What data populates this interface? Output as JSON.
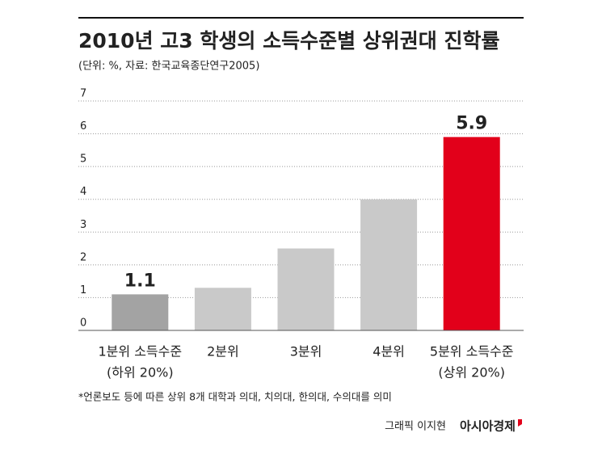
{
  "chart_data": {
    "type": "bar",
    "title": "2010년 고3 학생의 소득수준별 상위권대 진학률",
    "subtitle": "(단위: %, 자료: 한국교육종단연구2005)",
    "categories": [
      [
        "1분위 소득수준",
        "(하위 20%)"
      ],
      [
        "2분위"
      ],
      [
        "3분위"
      ],
      [
        "4분위"
      ],
      [
        "5분위 소득수준",
        "(상위 20%)"
      ]
    ],
    "values": [
      1.1,
      1.3,
      2.5,
      4.0,
      5.9
    ],
    "value_labels": [
      "1.1",
      null,
      null,
      null,
      "5.9"
    ],
    "colors": [
      "#a3a3a3",
      "#c9c9c9",
      "#c9c9c9",
      "#c9c9c9",
      "#e2001a"
    ],
    "ylim": [
      0,
      7
    ],
    "yticks": [
      0,
      1,
      2,
      3,
      4,
      5,
      6,
      7
    ],
    "grid": true,
    "footnote": "*언론보도 등에 따른 상위 8개 대학과 의대, 치의대, 한의대, 수의대를 의미",
    "credit": "그래픽 이지현",
    "source_logo": "아시아경제"
  }
}
